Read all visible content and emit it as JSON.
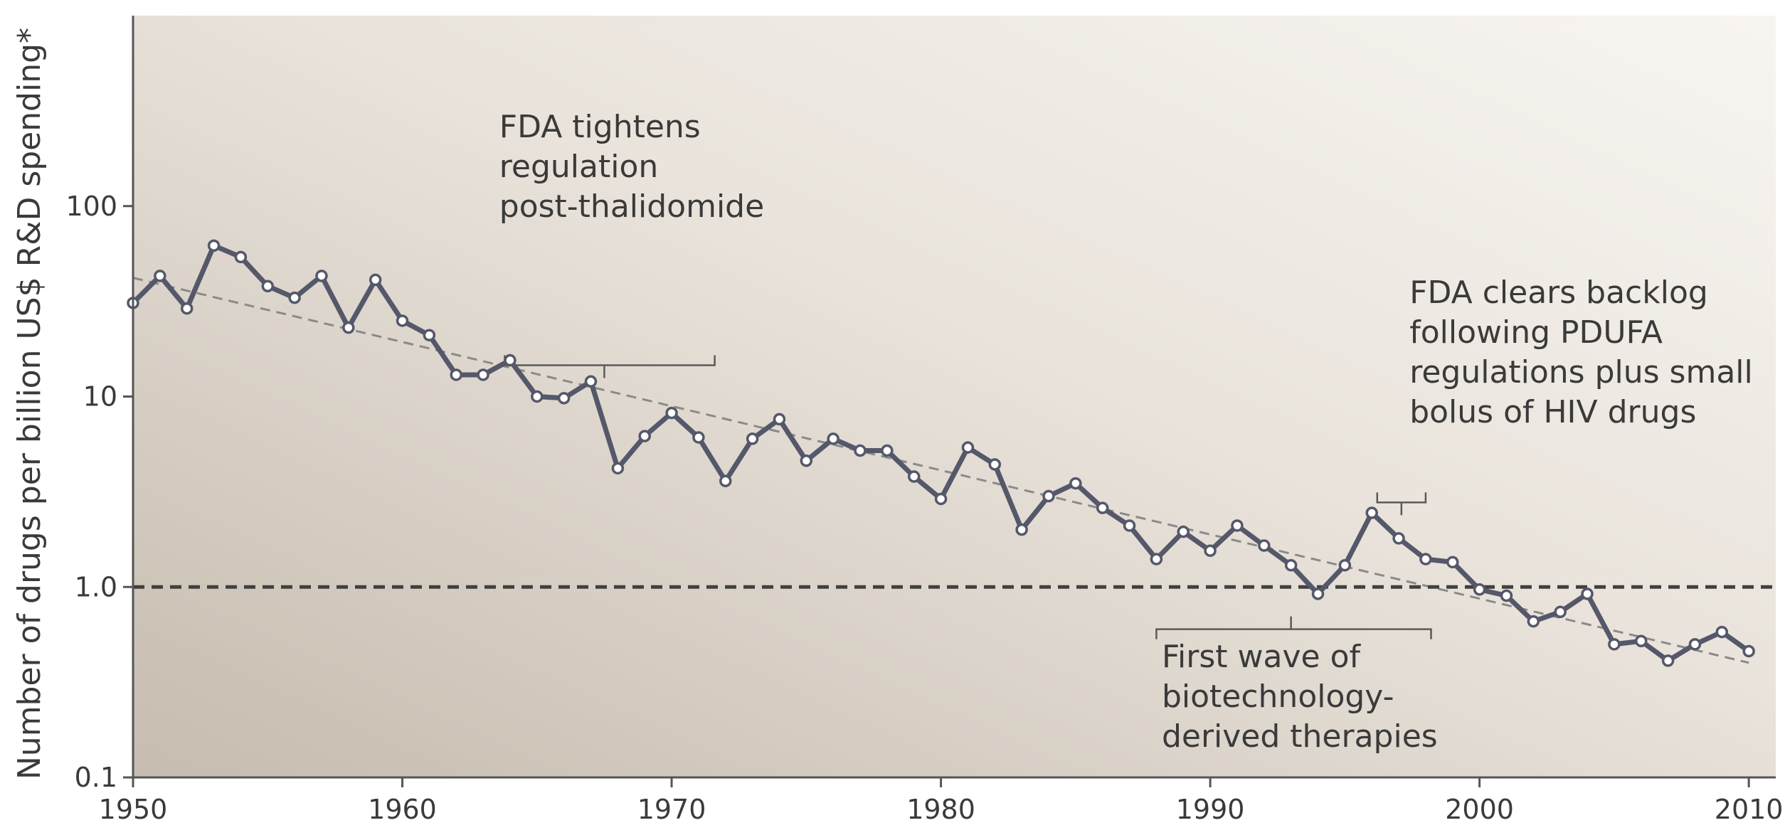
{
  "chart_data": {
    "type": "line",
    "title": "",
    "xlabel": "",
    "ylabel": "Number of drugs per billion US$ R&D spending*",
    "yscale": "log",
    "xlim": [
      1950,
      2011
    ],
    "ylim": [
      0.1,
      1000
    ],
    "x_ticks": [
      1950,
      1960,
      1970,
      1980,
      1990,
      2000,
      2010
    ],
    "y_ticks": [
      0.1,
      1.0,
      10,
      100
    ],
    "y_tick_labels": [
      "0.1",
      "1.0",
      "10",
      "100"
    ],
    "reference_line": {
      "y": 1.0,
      "style": "dashed"
    },
    "trend_line": {
      "x": [
        1950,
        2010
      ],
      "y": [
        42,
        0.4
      ],
      "style": "dashed"
    },
    "colors": {
      "series": "#55586a",
      "trend": "#8a8a8a",
      "reference": "#404040",
      "background_left": "#c9bfb3",
      "background_right": "#f6f2ec"
    },
    "series": [
      {
        "x": [
          1950,
          1951,
          1952,
          1953,
          1954,
          1955,
          1956,
          1957,
          1958,
          1959,
          1960,
          1961,
          1962,
          1963,
          1964,
          1965,
          1966,
          1967,
          1968,
          1969,
          1970,
          1971,
          1972,
          1973,
          1974,
          1975,
          1976,
          1977,
          1978,
          1979,
          1980,
          1981,
          1982,
          1983,
          1984,
          1985,
          1986,
          1987,
          1988,
          1989,
          1990,
          1991,
          1992,
          1993,
          1994,
          1995,
          1996,
          1997,
          1998,
          1999,
          2000,
          2001,
          2002,
          2003,
          2004,
          2005,
          2006,
          2007,
          2008,
          2009,
          2010
        ],
        "values": [
          31,
          43,
          29,
          62,
          54,
          38,
          33,
          43,
          23,
          41,
          25,
          21,
          13,
          13,
          15.5,
          10,
          9.8,
          12,
          4.2,
          6.2,
          8.2,
          6.1,
          3.6,
          6,
          7.6,
          4.6,
          6,
          5.2,
          5.2,
          3.8,
          2.9,
          5.4,
          4.4,
          2,
          3,
          3.5,
          2.6,
          2.1,
          1.4,
          1.95,
          1.55,
          2.1,
          1.65,
          1.3,
          0.92,
          1.3,
          2.45,
          1.8,
          1.4,
          1.35,
          0.97,
          0.9,
          0.66,
          0.74,
          0.92,
          0.5,
          0.52,
          0.41,
          0.5,
          0.58,
          0.46
        ]
      }
    ],
    "annotations": [
      {
        "lines": [
          "FDA tightens",
          "regulation",
          "post-thalidomide"
        ],
        "bracket_x": [
          1963.8,
          1971.6
        ],
        "bracket_y": 14.6,
        "tick_x": 1967.5,
        "text_x": 1963.6,
        "text_y": 230
      },
      {
        "lines": [
          "FDA clears backlog",
          "following PDUFA",
          "regulations plus small",
          "bolus of HIV drugs"
        ],
        "bracket_x": [
          1996.2,
          1998
        ],
        "bracket_y": 2.78,
        "tick_x": 1997.1,
        "text_x": 1997.4,
        "text_y": 31
      },
      {
        "lines": [
          "First wave of",
          "biotechnology-",
          "derived therapies"
        ],
        "bracket_x": [
          1988,
          1998.2
        ],
        "bracket_y": 0.6,
        "tick_x": 1993,
        "text_x": 1988.2,
        "text_y": 0.38
      }
    ]
  }
}
